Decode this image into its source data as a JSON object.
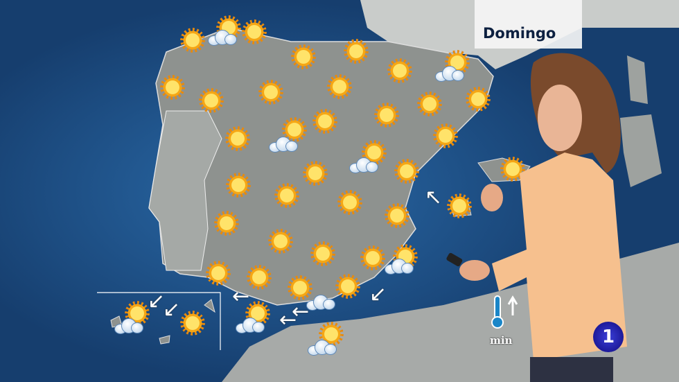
{
  "header": {
    "day": "Domingo"
  },
  "legend": {
    "min_label": "min"
  },
  "channel_logo": {
    "text": "1"
  },
  "icons": {
    "sun": "sun-icon",
    "cloud": "sun-behind-cloud-icon",
    "wind": "wind-arrow-icon",
    "thermometer": "thermometer-icon"
  },
  "colors": {
    "sea": "#1c4f86",
    "land": "#8b8f8c",
    "title_text": "#0d2040",
    "logo": "#2a28b8",
    "jacket": "#f6c08e"
  }
}
